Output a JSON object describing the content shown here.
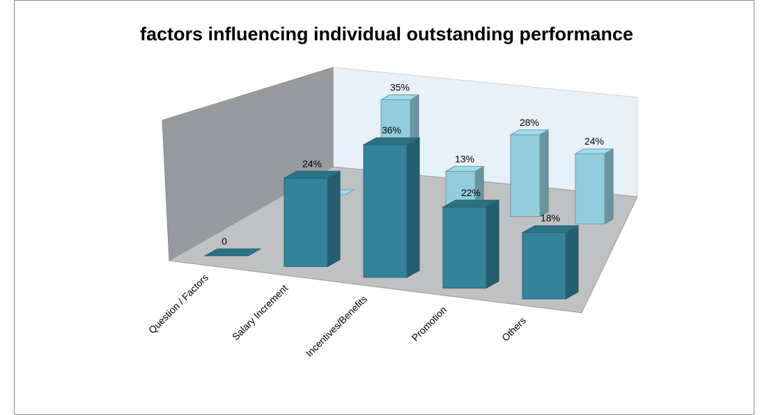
{
  "chart_data": {
    "type": "bar3d",
    "title": "factors influencing individual outstanding performance",
    "categories": [
      "Question / Factors",
      "Salary Increment",
      "Incentives/Benefits",
      "Promotion",
      "Others"
    ],
    "series": [
      {
        "color": "#93cddd",
        "values": [
          0,
          35,
          13,
          28,
          24
        ],
        "value_labels": [
          "0",
          "35%",
          "13%",
          "28%",
          "24%"
        ]
      },
      {
        "color": "#33849a",
        "values": [
          0,
          24,
          36,
          22,
          18
        ],
        "value_labels": [
          "0",
          "24%",
          "36%",
          "22%",
          "18%"
        ]
      }
    ]
  }
}
